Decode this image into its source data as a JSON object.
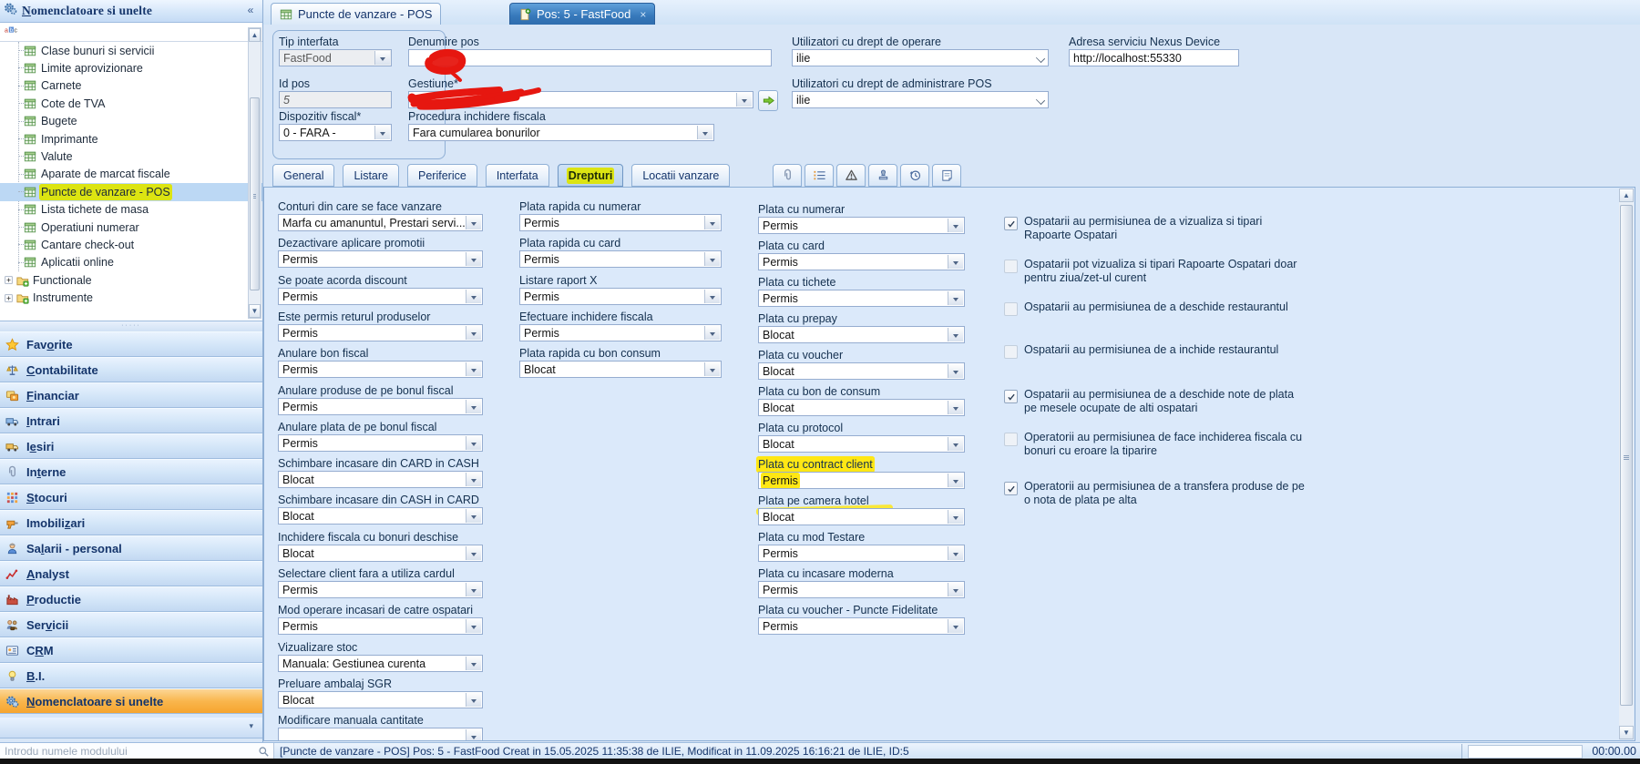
{
  "colors": {
    "marker_yellow": "#dce412",
    "highlight_yellow": "#ffe714",
    "marker_red": "#e61710",
    "selected_orange": "#f9b64d",
    "active_tab_blue": "#3678ba",
    "panel_blue": "#d8e6f7"
  },
  "sidebar": {
    "title": "Nomenclatoare si unelte",
    "title_accel": 0,
    "collapse_glyph": "«",
    "toolbar_icon": "abc-sort-icon",
    "tree": [
      {
        "label": "Clase bunuri si servicii",
        "type": "table"
      },
      {
        "label": "Limite aprovizionare",
        "type": "table"
      },
      {
        "label": "Carnete",
        "type": "table"
      },
      {
        "label": "Cote de TVA",
        "type": "table"
      },
      {
        "label": "Bugete",
        "type": "table"
      },
      {
        "label": "Imprimante",
        "type": "table"
      },
      {
        "label": "Valute",
        "type": "table"
      },
      {
        "label": "Aparate de marcat fiscale",
        "type": "table"
      },
      {
        "label": "Puncte de vanzare - POS",
        "type": "table",
        "selected": true,
        "highlighted": true
      },
      {
        "label": "Lista tichete de masa",
        "type": "table"
      },
      {
        "label": "Operatiuni numerar",
        "type": "table"
      },
      {
        "label": "Cantare check-out",
        "type": "table"
      },
      {
        "label": "Aplicatii online",
        "type": "table"
      },
      {
        "label": "Functionale",
        "type": "folder"
      },
      {
        "label": "Instrumente",
        "type": "folder"
      }
    ],
    "nav_items": [
      {
        "label": "Favorite",
        "accel": 3,
        "icon": "star-icon"
      },
      {
        "label": "Contabilitate",
        "accel": 0,
        "icon": "scales-icon"
      },
      {
        "label": "Financiar",
        "accel": 0,
        "icon": "finance-icon"
      },
      {
        "label": "Intrari",
        "accel": 0,
        "icon": "truck-in-icon"
      },
      {
        "label": "Iesiri",
        "accel": 1,
        "icon": "truck-out-icon"
      },
      {
        "label": "Interne",
        "accel": 2,
        "icon": "paperclip-icon"
      },
      {
        "label": "Stocuri",
        "accel": 0,
        "icon": "stock-grid-icon"
      },
      {
        "label": "Imobilizari",
        "accel": 7,
        "icon": "drill-icon"
      },
      {
        "label": "Salarii - personal",
        "accel": 2,
        "icon": "worker-icon"
      },
      {
        "label": "Analyst",
        "accel": 0,
        "icon": "analysis-icon"
      },
      {
        "label": "Productie",
        "accel": 0,
        "icon": "factory-icon"
      },
      {
        "label": "Servicii",
        "accel": 3,
        "icon": "services-icon"
      },
      {
        "label": "CRM",
        "accel": 1,
        "icon": "crm-card-icon"
      },
      {
        "label": "B.I.",
        "accel": 0,
        "icon": "bulb-icon"
      },
      {
        "label": "Nomenclatoare si unelte",
        "accel": 0,
        "icon": "gears-icon",
        "active": true
      }
    ],
    "more_chevron": "▾",
    "search": {
      "placeholder": "Introdu numele modulului",
      "icon": "search-icon"
    }
  },
  "tabs": [
    {
      "label": "Puncte de vanzare - POS",
      "icon": "table-icon",
      "active": false
    },
    {
      "label": "Pos: 5 - FastFood",
      "icon": "page-plus-icon",
      "active": true,
      "close_glyph": "×"
    }
  ],
  "form": {
    "tip_interfata": {
      "label": "Tip interfata",
      "value": "FastFood"
    },
    "id_pos": {
      "label": "Id pos",
      "value": "5"
    },
    "dispozitiv_fiscal": {
      "label": "Dispozitiv fiscal*",
      "value": "0 - FARA -"
    },
    "denumire_pos": {
      "label": "Denumire pos",
      "value": ""
    },
    "gestiune": {
      "label": "Gestiune*",
      "value": "",
      "button_icon": "green-arrow-icon"
    },
    "procedura": {
      "label": "Procedura inchidere fiscala",
      "value": "Fara cumularea bonurilor"
    },
    "utilizatori_operare": {
      "label": "Utilizatori cu drept de operare",
      "value": "ilie"
    },
    "utilizatori_admin": {
      "label": "Utilizatori cu drept de administrare POS",
      "value": "ilie"
    },
    "adresa_nexus": {
      "label": "Adresa serviciu Nexus Device",
      "value": "http://localhost:55330"
    }
  },
  "inner_tabs": {
    "tabs": [
      {
        "label": "General"
      },
      {
        "label": "Listare"
      },
      {
        "label": "Periferice"
      },
      {
        "label": "Interfata"
      },
      {
        "label": "Drepturi",
        "active": true,
        "highlighted": true
      },
      {
        "label": "Locatii vanzare"
      }
    ],
    "icon_buttons": [
      "paperclip-icon",
      "checklist-icon",
      "warning-icon",
      "stamp-icon",
      "history-icon",
      "note-icon"
    ]
  },
  "rights": {
    "col1": [
      {
        "label": "Conturi din care se face vanzare",
        "value": "Marfa cu amanuntul, Prestari servi..."
      },
      {
        "label": "Dezactivare aplicare promotii",
        "value": "Permis"
      },
      {
        "label": "Se poate acorda discount",
        "value": "Permis"
      },
      {
        "label": "Este permis returul produselor",
        "value": "Permis"
      },
      {
        "label": "Anulare bon fiscal",
        "value": "Permis"
      },
      {
        "label": "Anulare produse de pe bonul fiscal",
        "value": "Permis"
      },
      {
        "label": "Anulare plata de pe bonul fiscal",
        "value": "Permis"
      },
      {
        "label": "Schimbare incasare din CARD in CASH",
        "value": "Blocat"
      },
      {
        "label": "Schimbare incasare din CASH in CARD",
        "value": "Blocat"
      },
      {
        "label": "Inchidere fiscala cu bonuri deschise",
        "value": "Blocat"
      },
      {
        "label": "Selectare client fara a utiliza cardul",
        "value": "Permis"
      },
      {
        "label": "Mod operare incasari de catre ospatari",
        "value": "Permis"
      },
      {
        "label": "Vizualizare stoc",
        "value": "Manuala: Gestiunea curenta"
      },
      {
        "label": "Preluare ambalaj SGR",
        "value": "Blocat"
      },
      {
        "label": "Modificare manuala cantitate",
        "value": ""
      }
    ],
    "col2": [
      {
        "label": "Plata rapida cu numerar",
        "value": "Permis"
      },
      {
        "label": "Plata rapida cu card",
        "value": "Permis"
      },
      {
        "label": "Listare raport X",
        "value": "Permis"
      },
      {
        "label": "Efectuare inchidere fiscala",
        "value": "Permis"
      },
      {
        "label": "Plata rapida cu bon consum",
        "value": "Blocat"
      }
    ],
    "col3": [
      {
        "label": "Plata cu numerar",
        "value": "Permis"
      },
      {
        "label": "Plata cu card",
        "value": "Permis"
      },
      {
        "label": "Plata cu tichete",
        "value": "Permis"
      },
      {
        "label": "Plata cu prepay",
        "value": "Blocat"
      },
      {
        "label": "Plata cu voucher",
        "value": "Blocat"
      },
      {
        "label": "Plata cu bon de consum",
        "value": "Blocat"
      },
      {
        "label": "Plata cu protocol",
        "value": "Blocat"
      },
      {
        "label": "Plata cu contract client",
        "value": "Permis",
        "highlighted": true
      },
      {
        "label": "Plata pe camera hotel",
        "value": "Blocat"
      },
      {
        "label": "Plata cu mod Testare",
        "value": "Permis"
      },
      {
        "label": "Plata cu incasare moderna",
        "value": "Permis"
      },
      {
        "label": "Plata cu voucher - Puncte Fidelitate",
        "value": "Permis"
      }
    ],
    "checkboxes": [
      {
        "label": "Ospatarii au permisiunea de a vizualiza si tipari Rapoarte Ospatari",
        "checked": true
      },
      {
        "label": "Ospatarii pot vizualiza si tipari Rapoarte Ospatari doar pentru ziua/zet-ul curent",
        "checked": false
      },
      {
        "label": "Ospatarii au permisiunea de a deschide restaurantul",
        "checked": false
      },
      {
        "label": "Ospatarii au permisiunea de a inchide restaurantul",
        "checked": false
      },
      {
        "label": "Ospatarii au permisiunea de a deschide note de plata pe mesele ocupate de alti ospatari",
        "checked": true
      },
      {
        "label": "Operatorii au permisiunea de face inchiderea fiscala cu bonuri cu eroare la tiparire",
        "checked": false
      },
      {
        "label": "Operatorii au permisiunea de a transfera produse de pe o nota de plata pe alta",
        "checked": true
      }
    ]
  },
  "statusbar": {
    "text": "[Puncte de vanzare - POS] Pos: 5 - FastFood Creat in 15.05.2025 11:35:38 de ILIE,  Modificat in 11.09.2025 16:16:21 de ILIE, ID:5",
    "timer": "00:00.00"
  }
}
